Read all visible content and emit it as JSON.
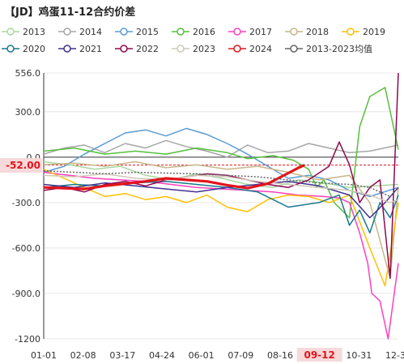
{
  "header": {
    "title": "【JD】鸡蛋11-12合约价差"
  },
  "chart_data": {
    "type": "line",
    "title": "【JD】鸡蛋11-12合约价差",
    "xlabel": "",
    "ylabel": "",
    "x_ticks": [
      "01-01",
      "02-08",
      "03-17",
      "04-24",
      "06-01",
      "07-09",
      "08-16",
      "09-12",
      "10-31",
      "12-31"
    ],
    "y_ticks": [
      556.0,
      300.0,
      0.0,
      -300.0,
      -600.0,
      -900.0,
      -1200
    ],
    "y_tick_labels": [
      "556.0",
      "300.0",
      "0.0",
      "-300.0",
      "-600.0",
      "-900.0",
      "-1200"
    ],
    "ylim": [
      -1200,
      556
    ],
    "highlight": {
      "x_label": "09-12",
      "y_label": "-52.00",
      "y_value": -52,
      "color": "#e2141b"
    },
    "grid": "horizontal",
    "legend_position": "top",
    "series": [
      {
        "name": "2013",
        "color": "#a8d8a0",
        "marker": "circle",
        "x": [
          0,
          25,
          50,
          75,
          100,
          125,
          150,
          175,
          200,
          225,
          250,
          275,
          300,
          325,
          348
        ],
        "values": [
          -30,
          -50,
          -80,
          -60,
          -120,
          -150,
          -110,
          -140,
          -180,
          -200,
          -150,
          -170,
          -200,
          -190,
          -180
        ]
      },
      {
        "name": "2014",
        "color": "#a6a6a6",
        "marker": "circle",
        "x": [
          0,
          20,
          40,
          60,
          80,
          100,
          120,
          140,
          160,
          180,
          200,
          220,
          240,
          260,
          280,
          300,
          320,
          348
        ],
        "values": [
          20,
          60,
          80,
          30,
          90,
          60,
          110,
          70,
          40,
          0,
          80,
          30,
          40,
          90,
          60,
          30,
          40,
          80
        ]
      },
      {
        "name": "2015",
        "color": "#5b9bd5",
        "marker": "circle",
        "x": [
          0,
          20,
          40,
          60,
          80,
          100,
          120,
          140,
          160,
          180,
          200,
          220,
          240,
          260,
          280,
          300,
          320,
          348
        ],
        "values": [
          -100,
          -60,
          20,
          90,
          160,
          180,
          140,
          190,
          150,
          90,
          20,
          -60,
          -140,
          -120,
          -150,
          -220,
          -260,
          -200
        ]
      },
      {
        "name": "2016",
        "color": "#57c03b",
        "marker": "circle",
        "x": [
          0,
          30,
          60,
          90,
          120,
          150,
          180,
          200,
          225,
          245,
          260,
          268,
          275,
          285,
          300,
          310,
          320,
          335,
          348
        ],
        "values": [
          40,
          60,
          20,
          40,
          20,
          60,
          30,
          -10,
          10,
          -20,
          -80,
          -200,
          -150,
          -300,
          -400,
          200,
          400,
          460,
          50
        ]
      },
      {
        "name": "2017",
        "color": "#ff3fbf",
        "marker": "circle",
        "x": [
          0,
          25,
          50,
          75,
          100,
          125,
          150,
          175,
          200,
          225,
          250,
          275,
          290,
          300,
          310,
          318,
          322,
          330,
          338,
          348
        ],
        "values": [
          -100,
          -120,
          -140,
          -150,
          -160,
          -180,
          -200,
          -210,
          -220,
          -230,
          -250,
          -260,
          -270,
          -300,
          -500,
          -700,
          -900,
          -950,
          -1200,
          -700
        ]
      },
      {
        "name": "2018",
        "color": "#c8b68a",
        "marker": "circle",
        "x": [
          0,
          30,
          60,
          90,
          120,
          150,
          180,
          210,
          240,
          270,
          300,
          320,
          340,
          348
        ],
        "values": [
          -50,
          -40,
          -60,
          -30,
          -70,
          -50,
          -80,
          -60,
          -100,
          -150,
          -120,
          -300,
          -800,
          -200
        ]
      },
      {
        "name": "2019",
        "color": "#ffc000",
        "marker": "circle",
        "x": [
          0,
          20,
          40,
          60,
          80,
          100,
          120,
          140,
          160,
          180,
          200,
          220,
          240,
          260,
          280,
          300,
          320,
          335,
          348
        ],
        "values": [
          -80,
          -140,
          -200,
          -260,
          -240,
          -280,
          -260,
          -300,
          -250,
          -330,
          -360,
          -280,
          -250,
          -260,
          -300,
          -250,
          -600,
          -850,
          -300
        ]
      },
      {
        "name": "2020",
        "color": "#17788c",
        "marker": "circle",
        "x": [
          0,
          30,
          60,
          90,
          120,
          150,
          180,
          210,
          240,
          270,
          290,
          300,
          310,
          320,
          330,
          340,
          348
        ],
        "values": [
          -200,
          -180,
          -190,
          -170,
          -160,
          -180,
          -200,
          -230,
          -330,
          -300,
          -250,
          -450,
          -350,
          -500,
          -300,
          -400,
          -250
        ]
      },
      {
        "name": "2021",
        "color": "#403190",
        "marker": "circle",
        "x": [
          0,
          30,
          60,
          90,
          120,
          150,
          180,
          210,
          240,
          270,
          300,
          320,
          335,
          348
        ],
        "values": [
          -180,
          -200,
          -170,
          -190,
          -210,
          -230,
          -200,
          -180,
          -160,
          -190,
          -250,
          -400,
          -300,
          -200
        ]
      },
      {
        "name": "2022",
        "color": "#8b0a50",
        "marker": "circle",
        "x": [
          0,
          20,
          40,
          60,
          80,
          100,
          120,
          140,
          160,
          180,
          200,
          220,
          240,
          260,
          280,
          290,
          300,
          310,
          320,
          330,
          340,
          348
        ],
        "values": [
          -220,
          -200,
          -230,
          -180,
          -160,
          -190,
          -150,
          -130,
          -110,
          -120,
          -150,
          -180,
          -200,
          -150,
          -60,
          100,
          -50,
          -300,
          -200,
          -150,
          -800,
          556
        ]
      },
      {
        "name": "2023",
        "color": "#d0c8b8",
        "marker": "circle",
        "x": [
          0,
          30,
          60,
          90,
          120,
          150,
          180,
          210,
          240,
          270,
          300,
          320,
          340,
          348
        ],
        "values": [
          -120,
          -130,
          -110,
          -140,
          -150,
          -120,
          -130,
          -160,
          -180,
          -200,
          -220,
          -250,
          -300,
          -280
        ]
      },
      {
        "name": "2024",
        "color": "#e2141b",
        "marker": "circle",
        "x": [
          0,
          20,
          40,
          60,
          80,
          100,
          120,
          140,
          160,
          180,
          200,
          220,
          230,
          240,
          250,
          256
        ],
        "values": [
          -200,
          -205,
          -210,
          -190,
          -175,
          -160,
          -140,
          -150,
          -160,
          -185,
          -205,
          -175,
          -140,
          -105,
          -70,
          -52
        ]
      },
      {
        "name": "2013-2023均值",
        "color": "#666666",
        "marker": "circle",
        "x": [
          0,
          30,
          60,
          90,
          120,
          150,
          180,
          210,
          240,
          270,
          300,
          320,
          340,
          348
        ],
        "values": [
          -90,
          -100,
          -110,
          -100,
          -105,
          -110,
          -120,
          -130,
          -150,
          -170,
          -180,
          -200,
          -260,
          -200
        ]
      }
    ]
  }
}
